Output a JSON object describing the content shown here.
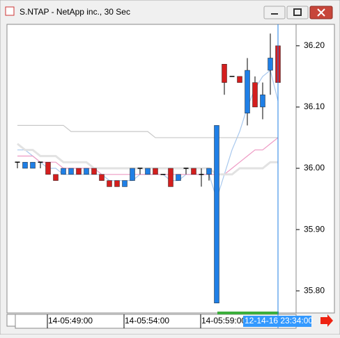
{
  "window": {
    "title": "S.NTAP - NetApp inc., 30 Sec"
  },
  "chart_data": {
    "type": "candlestick",
    "categories": [
      null,
      null,
      null,
      null,
      "14-05:49:00",
      null,
      null,
      null,
      null,
      null,
      null,
      null,
      null,
      null,
      "14-05:54:00",
      null,
      null,
      null,
      null,
      null,
      null,
      null,
      null,
      null,
      "14-05:59:00",
      null,
      null,
      null,
      null,
      null,
      null,
      null,
      null,
      null,
      null
    ],
    "open": [
      36.01,
      36.0,
      36.0,
      36.01,
      36.01,
      35.99,
      35.99,
      35.99,
      36.0,
      35.99,
      36.0,
      35.99,
      35.98,
      35.98,
      35.97,
      35.98,
      36.0,
      35.99,
      36.0,
      35.99,
      36.0,
      35.98,
      36.0,
      36.0,
      35.99,
      35.99,
      35.78,
      36.17,
      36.15,
      36.15,
      36.09,
      36.14,
      36.1,
      36.16,
      36.2
    ],
    "high": [
      36.01,
      36.01,
      36.01,
      36.01,
      36.01,
      35.99,
      36.0,
      36.0,
      36.0,
      36.0,
      36.0,
      35.99,
      35.98,
      35.98,
      35.98,
      36.0,
      36.0,
      36.0,
      36.0,
      35.99,
      36.0,
      35.99,
      36.0,
      36.0,
      36.0,
      36.0,
      36.07,
      36.17,
      36.15,
      36.15,
      36.18,
      36.15,
      36.14,
      36.22,
      36.2
    ],
    "low": [
      36.0,
      36.0,
      36.0,
      36.0,
      35.99,
      35.98,
      35.99,
      35.99,
      35.99,
      35.99,
      35.99,
      35.98,
      35.97,
      35.97,
      35.97,
      35.98,
      35.99,
      35.99,
      35.99,
      35.99,
      35.97,
      35.98,
      35.99,
      35.99,
      35.97,
      35.98,
      35.78,
      36.12,
      36.15,
      36.14,
      36.07,
      36.1,
      36.08,
      36.12,
      36.13
    ],
    "close": [
      36.01,
      36.01,
      36.01,
      36.01,
      35.99,
      35.98,
      36.0,
      36.0,
      35.99,
      36.0,
      35.99,
      35.98,
      35.97,
      35.97,
      35.98,
      36.0,
      36.0,
      36.0,
      35.99,
      35.99,
      35.97,
      35.99,
      36.0,
      35.99,
      35.99,
      36.0,
      36.07,
      36.14,
      36.15,
      36.14,
      36.16,
      36.1,
      36.12,
      36.18,
      36.14
    ],
    "up_color": "#1f7fe6",
    "down_color": "#d41e1e",
    "overlays": [
      {
        "color": "#a8c8ee",
        "values": [
          36.03,
          36.03,
          36.02,
          36.01,
          36.0,
          36.0,
          35.99,
          35.99,
          35.99,
          35.99,
          35.99,
          35.99,
          35.98,
          35.98,
          35.98,
          35.98,
          35.99,
          35.99,
          35.99,
          35.99,
          35.98,
          35.98,
          35.99,
          35.99,
          35.99,
          35.99,
          35.95,
          35.99,
          36.03,
          36.06,
          36.1,
          36.13,
          36.15,
          36.16,
          36.11
        ]
      },
      {
        "color": "#ee9ac4",
        "values": [
          36.02,
          36.02,
          36.02,
          36.01,
          36.01,
          36.01,
          36.0,
          36.0,
          36.0,
          36.0,
          36.0,
          35.99,
          35.99,
          35.99,
          35.99,
          35.99,
          35.99,
          35.99,
          35.99,
          35.99,
          35.99,
          35.99,
          35.99,
          35.99,
          35.99,
          35.99,
          35.99,
          35.99,
          36.0,
          36.01,
          36.02,
          36.03,
          36.03,
          36.04,
          36.05
        ]
      },
      {
        "color": "#e2e2e2",
        "values": [
          36.04,
          36.03,
          36.03,
          36.02,
          36.02,
          36.02,
          36.01,
          36.01,
          36.01,
          36.01,
          36.0,
          36.0,
          36.0,
          36.0,
          36.0,
          36.0,
          36.0,
          36.0,
          36.0,
          36.0,
          36.0,
          36.0,
          36.0,
          36.0,
          36.0,
          36.0,
          35.99,
          35.99,
          35.99,
          36.0,
          36.0,
          36.0,
          36.0,
          36.01,
          36.01
        ]
      },
      {
        "color": "#c8c8c8",
        "values": [
          36.07,
          36.07,
          36.07,
          36.07,
          36.07,
          36.07,
          36.07,
          36.06,
          36.06,
          36.06,
          36.06,
          36.06,
          36.06,
          36.06,
          36.06,
          36.06,
          36.06,
          36.06,
          36.05,
          36.05,
          36.05,
          36.05,
          36.05,
          36.05,
          36.05,
          36.05,
          36.05,
          36.05,
          36.05,
          36.05,
          36.05,
          36.05,
          36.05,
          36.05,
          36.05
        ]
      }
    ],
    "ylim": [
      35.765,
      36.235
    ],
    "yticks": [
      {
        "value": 35.8,
        "label": "35.80"
      },
      {
        "value": 35.9,
        "label": "35.90"
      },
      {
        "value": 36.0,
        "label": "36.00"
      },
      {
        "value": 36.1,
        "label": "36.10"
      },
      {
        "value": 36.2,
        "label": "36.20"
      }
    ],
    "crosshair_label": "12-14-16 23:34:00"
  }
}
